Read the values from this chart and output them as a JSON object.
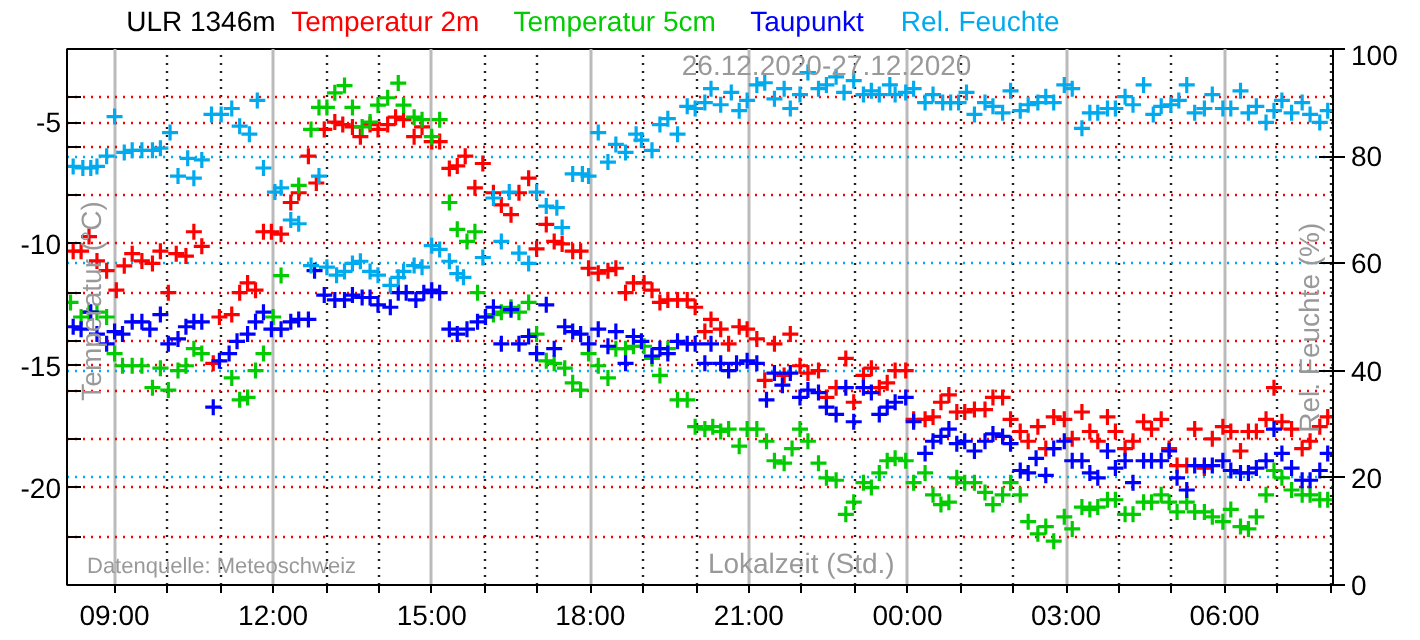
{
  "chart_data": {
    "type": "scatter",
    "title": "ULR 1346m",
    "xlabel": "Lokalzeit (Std.)",
    "ylabel": "Temperatur (°C)",
    "y2label": "Rel. Feuchte (%)",
    "annotations": [
      "26.12.2020-27.12.2020",
      "Datenquelle: Meteoschweiz"
    ],
    "xlim": [
      "2020-12-26T08:06",
      "2020-12-27T08:03"
    ],
    "ylim": [
      -24,
      -2
    ],
    "y2lim": [
      0,
      100
    ],
    "xticks": [
      {
        "value": "2020-12-26T09:00",
        "label": "09:00"
      },
      {
        "value": "2020-12-26T10:00",
        "label": null
      },
      {
        "value": "2020-12-26T11:00",
        "label": null
      },
      {
        "value": "2020-12-26T12:00",
        "label": "12:00"
      },
      {
        "value": "2020-12-26T13:00",
        "label": null
      },
      {
        "value": "2020-12-26T14:00",
        "label": null
      },
      {
        "value": "2020-12-26T15:00",
        "label": "15:00"
      },
      {
        "value": "2020-12-26T16:00",
        "label": null
      },
      {
        "value": "2020-12-26T17:00",
        "label": null
      },
      {
        "value": "2020-12-26T18:00",
        "label": "18:00"
      },
      {
        "value": "2020-12-26T19:00",
        "label": null
      },
      {
        "value": "2020-12-26T20:00",
        "label": null
      },
      {
        "value": "2020-12-26T21:00",
        "label": "21:00"
      },
      {
        "value": "2020-12-26T22:00",
        "label": null
      },
      {
        "value": "2020-12-26T23:00",
        "label": null
      },
      {
        "value": "2020-12-27T00:00",
        "label": "00:00"
      },
      {
        "value": "2020-12-27T01:00",
        "label": null
      },
      {
        "value": "2020-12-27T02:00",
        "label": null
      },
      {
        "value": "2020-12-27T03:00",
        "label": "03:00"
      },
      {
        "value": "2020-12-27T04:00",
        "label": null
      },
      {
        "value": "2020-12-27T05:00",
        "label": null
      },
      {
        "value": "2020-12-27T06:00",
        "label": "06:00"
      },
      {
        "value": "2020-12-27T07:00",
        "label": null
      },
      {
        "value": "2020-12-27T08:00",
        "label": null
      }
    ],
    "yticks": [
      {
        "value": -4,
        "label": null
      },
      -5,
      {
        "value": -6,
        "label": null
      },
      {
        "value": -8,
        "label": null
      },
      -10,
      {
        "value": -12,
        "label": null
      },
      {
        "value": -14,
        "label": null
      },
      -15,
      {
        "value": -16,
        "label": null
      },
      {
        "value": -18,
        "label": null
      },
      -20,
      {
        "value": -22,
        "label": null
      }
    ],
    "y2ticks": [
      0,
      20,
      40,
      60,
      80,
      100
    ],
    "grid": true,
    "marker": "cross",
    "series": [
      {
        "name": "Temperatur 2m",
        "color": "#ff0000",
        "x": [
          "2020-12-26T08:13",
          "2020-12-26T08:22",
          "2020-12-26T08:31",
          "2020-12-26T08:40",
          "2020-12-26T08:51",
          "2020-12-26T09:02",
          "2020-12-26T09:11",
          "2020-12-26T09:20",
          "2020-12-26T09:31",
          "2020-12-26T09:43",
          "2020-12-26T09:52",
          "2020-12-26T10:01",
          "2020-12-26T10:10",
          "2020-12-26T10:21",
          "2020-12-26T10:30",
          "2020-12-26T10:39",
          "2020-12-26T10:52",
          "2020-12-26T10:59",
          "2020-12-26T11:13",
          "2020-12-26T11:22",
          "2020-12-26T11:31",
          "2020-12-26T11:40",
          "2020-12-26T11:49",
          "2020-12-26T11:58",
          "2020-12-26T12:09",
          "2020-12-26T12:20",
          "2020-12-26T12:29",
          "2020-12-26T12:40",
          "2020-12-26T12:49",
          "2020-12-26T12:58",
          "2020-12-26T13:10",
          "2020-12-26T13:19",
          "2020-12-26T13:30",
          "2020-12-26T13:39",
          "2020-12-26T13:50",
          "2020-12-26T13:59",
          "2020-12-26T14:10",
          "2020-12-26T14:19",
          "2020-12-26T14:28",
          "2020-12-26T14:40",
          "2020-12-26T14:49",
          "2020-12-26T15:00",
          "2020-12-26T15:09",
          "2020-12-26T15:20",
          "2020-12-26T15:29",
          "2020-12-26T15:38",
          "2020-12-26T15:49",
          "2020-12-26T15:58",
          "2020-12-26T16:10",
          "2020-12-26T16:19",
          "2020-12-26T16:30",
          "2020-12-26T16:39",
          "2020-12-26T16:50",
          "2020-12-26T16:59",
          "2020-12-26T17:10",
          "2020-12-26T17:19",
          "2020-12-26T17:28",
          "2020-12-26T17:40",
          "2020-12-26T17:49",
          "2020-12-26T17:58",
          "2020-12-26T18:09",
          "2020-12-26T18:20",
          "2020-12-26T18:29",
          "2020-12-26T18:40",
          "2020-12-26T18:49",
          "2020-12-26T19:01",
          "2020-12-26T19:10",
          "2020-12-26T19:19",
          "2020-12-26T19:28",
          "2020-12-26T19:39",
          "2020-12-26T19:50",
          "2020-12-26T19:59",
          "2020-12-26T20:10",
          "2020-12-26T20:17",
          "2020-12-26T20:28",
          "2020-12-26T20:37",
          "2020-12-26T20:49",
          "2020-12-26T20:58",
          "2020-12-26T21:09",
          "2020-12-26T21:18",
          "2020-12-26T21:29",
          "2020-12-26T21:40",
          "2020-12-26T21:47",
          "2020-12-26T21:58",
          "2020-12-26T22:07",
          "2020-12-26T22:19",
          "2020-12-26T22:28",
          "2020-12-26T22:39",
          "2020-12-26T22:50",
          "2020-12-26T22:59",
          "2020-12-26T23:10",
          "2020-12-26T23:19",
          "2020-12-26T23:28",
          "2020-12-26T23:37",
          "2020-12-26T23:46",
          "2020-12-26T23:58",
          "2020-12-27T00:07",
          "2020-12-27T00:20",
          "2020-12-27T00:29",
          "2020-12-27T00:38",
          "2020-12-27T00:47",
          "2020-12-27T00:56",
          "2020-12-27T01:05",
          "2020-12-27T01:16",
          "2020-12-27T01:28",
          "2020-12-27T01:37",
          "2020-12-27T01:48",
          "2020-12-27T01:57",
          "2020-12-27T02:08",
          "2020-12-27T02:17",
          "2020-12-27T02:28",
          "2020-12-27T02:37",
          "2020-12-27T02:46",
          "2020-12-27T02:58",
          "2020-12-27T03:07",
          "2020-12-27T03:18",
          "2020-12-27T03:27",
          "2020-12-27T03:36",
          "2020-12-27T03:47",
          "2020-12-27T03:56",
          "2020-12-27T04:07",
          "2020-12-27T04:16",
          "2020-12-27T04:28",
          "2020-12-27T04:37",
          "2020-12-27T04:48",
          "2020-12-27T04:57",
          "2020-12-27T05:06",
          "2020-12-27T05:17",
          "2020-12-27T05:26",
          "2020-12-27T05:37",
          "2020-12-27T05:46",
          "2020-12-27T05:58",
          "2020-12-27T06:07",
          "2020-12-27T06:18",
          "2020-12-27T06:27",
          "2020-12-27T06:36",
          "2020-12-27T06:47",
          "2020-12-27T06:56",
          "2020-12-27T07:05",
          "2020-12-27T07:16",
          "2020-12-27T07:28",
          "2020-12-27T07:37",
          "2020-12-27T07:48",
          "2020-12-27T07:57"
        ],
        "values": [
          -10.3,
          -10.3,
          -9.7,
          -10.7,
          -11.1,
          -11.9,
          -10.9,
          -10.4,
          -10.7,
          -10.8,
          -10.3,
          -12.0,
          -10.4,
          -10.5,
          -9.5,
          -10.1,
          -14.9,
          -13.0,
          -12.9,
          -12.0,
          -11.6,
          -11.9,
          -9.5,
          -9.5,
          -9.6,
          -8.3,
          -7.9,
          -6.4,
          -7.5,
          -5.3,
          -5.0,
          -5.1,
          -5.2,
          -5.6,
          -5.1,
          -5.3,
          -5.1,
          -4.8,
          -4.9,
          -5.6,
          -5.2,
          -5.8,
          -5.8,
          -6.9,
          -6.8,
          -6.4,
          -7.7,
          -6.7,
          -7.9,
          -8.4,
          -8.8,
          -7.9,
          -7.3,
          -10.2,
          -9.2,
          -9.9,
          -10.0,
          -10.3,
          -10.3,
          -11.0,
          -11.2,
          -11.1,
          -11.0,
          -12.0,
          -11.6,
          -11.6,
          -11.9,
          -12.4,
          -12.3,
          -12.3,
          -12.3,
          -12.6,
          -13.6,
          -13.1,
          -13.5,
          -14.1,
          -13.4,
          -13.5,
          -13.9,
          -15.6,
          -14.1,
          -15.4,
          -13.7,
          -15.0,
          -15.3,
          -15.2,
          -16.3,
          -15.9,
          -14.7,
          -16.5,
          -15.4,
          -15.1,
          -15.9,
          -15.7,
          -15.2,
          -15.2,
          -17.2,
          -17.2,
          -17.1,
          -16.5,
          -16.2,
          -16.9,
          -16.9,
          -16.8,
          -16.8,
          -16.3,
          -16.3,
          -17.2,
          -17.7,
          -18.1,
          -17.5,
          -18.4,
          -17.1,
          -17.2,
          -18.0,
          -16.9,
          -17.7,
          -18.1,
          -17.1,
          -17.7,
          -18.4,
          -18.1,
          -17.3,
          -17.6,
          -17.2,
          -18.4,
          -19.1,
          -19.1,
          -17.6,
          -19.2,
          -18.0,
          -17.5,
          -17.7,
          -18.5,
          -17.7,
          -17.7,
          -17.2,
          -15.9,
          -17.3,
          -17.6,
          -18.4,
          -18.1,
          -17.5,
          -17.1
        ]
      },
      {
        "name": "Temperatur 5cm",
        "color": "#00cc00",
        "x": [
          "2020-12-26T08:10",
          "2020-12-26T08:22",
          "2020-12-26T08:31",
          "2020-12-26T08:40",
          "2020-12-26T08:51",
          "2020-12-26T09:00",
          "2020-12-26T09:09",
          "2020-12-26T09:20",
          "2020-12-26T09:31",
          "2020-12-26T09:43",
          "2020-12-26T09:52",
          "2020-12-26T10:01",
          "2020-12-26T10:12",
          "2020-12-26T10:21",
          "2020-12-26T10:30",
          "2020-12-26T10:39",
          "2020-12-26T10:59",
          "2020-12-26T11:13",
          "2020-12-26T11:22",
          "2020-12-26T11:31",
          "2020-12-26T11:40",
          "2020-12-26T11:49",
          "2020-12-26T12:00",
          "2020-12-26T12:09",
          "2020-12-26T12:29",
          "2020-12-26T12:43",
          "2020-12-26T12:52",
          "2020-12-26T13:01",
          "2020-12-26T13:10",
          "2020-12-26T13:21",
          "2020-12-26T13:30",
          "2020-12-26T13:41",
          "2020-12-26T13:50",
          "2020-12-26T13:59",
          "2020-12-26T14:10",
          "2020-12-26T14:22",
          "2020-12-26T14:28",
          "2020-12-26T14:40",
          "2020-12-26T14:49",
          "2020-12-26T15:00",
          "2020-12-26T15:09",
          "2020-12-26T15:20",
          "2020-12-26T15:29",
          "2020-12-26T15:40",
          "2020-12-26T15:49",
          "2020-12-26T15:52",
          "2020-12-26T16:01",
          "2020-12-26T16:10",
          "2020-12-26T16:19",
          "2020-12-26T16:30",
          "2020-12-26T16:39",
          "2020-12-26T16:50",
          "2020-12-26T16:59",
          "2020-12-26T17:10",
          "2020-12-26T17:19",
          "2020-12-26T17:31",
          "2020-12-26T17:40",
          "2020-12-26T17:49",
          "2020-12-26T17:58",
          "2020-12-26T18:09",
          "2020-12-26T18:20",
          "2020-12-26T18:29",
          "2020-12-26T18:40",
          "2020-12-26T18:49",
          "2020-12-26T19:01",
          "2020-12-26T19:10",
          "2020-12-26T19:19",
          "2020-12-26T19:28",
          "2020-12-26T19:39",
          "2020-12-26T19:50",
          "2020-12-26T19:59",
          "2020-12-26T20:10",
          "2020-12-26T20:19",
          "2020-12-26T20:28",
          "2020-12-26T20:37",
          "2020-12-26T20:49",
          "2020-12-26T20:58",
          "2020-12-26T21:09",
          "2020-12-26T21:20",
          "2020-12-26T21:29",
          "2020-12-26T21:40",
          "2020-12-26T21:49",
          "2020-12-26T21:58",
          "2020-12-26T22:07",
          "2020-12-26T22:19",
          "2020-12-26T22:28",
          "2020-12-26T22:39",
          "2020-12-26T22:50",
          "2020-12-26T22:59",
          "2020-12-26T23:10",
          "2020-12-26T23:19",
          "2020-12-26T23:28",
          "2020-12-26T23:37",
          "2020-12-26T23:46",
          "2020-12-26T23:58",
          "2020-12-27T00:07",
          "2020-12-27T00:20",
          "2020-12-27T00:29",
          "2020-12-27T00:38",
          "2020-12-27T00:47",
          "2020-12-27T00:56",
          "2020-12-27T01:05",
          "2020-12-27T01:16",
          "2020-12-27T01:28",
          "2020-12-27T01:37",
          "2020-12-27T01:48",
          "2020-12-27T01:57",
          "2020-12-27T02:08",
          "2020-12-27T02:17",
          "2020-12-27T02:28",
          "2020-12-27T02:37",
          "2020-12-27T02:46",
          "2020-12-27T02:58",
          "2020-12-27T03:07",
          "2020-12-27T03:18",
          "2020-12-27T03:27",
          "2020-12-27T03:36",
          "2020-12-27T03:47",
          "2020-12-27T03:56",
          "2020-12-27T04:07",
          "2020-12-27T04:16",
          "2020-12-27T04:28",
          "2020-12-27T04:37",
          "2020-12-27T04:48",
          "2020-12-27T04:57",
          "2020-12-27T05:06",
          "2020-12-27T05:17",
          "2020-12-27T05:26",
          "2020-12-27T05:37",
          "2020-12-27T05:46",
          "2020-12-27T05:58",
          "2020-12-27T06:07",
          "2020-12-27T06:18",
          "2020-12-27T06:27",
          "2020-12-27T06:36",
          "2020-12-27T06:47",
          "2020-12-27T06:56",
          "2020-12-27T07:05",
          "2020-12-27T07:16",
          "2020-12-27T07:28",
          "2020-12-27T07:37",
          "2020-12-27T07:48",
          "2020-12-27T07:57"
        ],
        "values": [
          -12.4,
          -13.0,
          -12.8,
          -12.8,
          -13.0,
          -14.5,
          -15.0,
          -15.0,
          -15.0,
          -15.9,
          -15.1,
          -16.0,
          -15.2,
          -15.0,
          -14.3,
          -14.5,
          null,
          -15.5,
          -16.4,
          -16.3,
          -15.2,
          -14.5,
          -13.0,
          -11.3,
          -7.6,
          -5.3,
          -4.4,
          -4.4,
          -3.8,
          -3.5,
          -4.4,
          -5.2,
          -5.0,
          -4.3,
          -4.0,
          -3.4,
          -4.3,
          -4.8,
          -4.9,
          -5.6,
          -4.9,
          -8.3,
          -9.4,
          -9.9,
          -9.5,
          -12.0,
          -13.0,
          -12.9,
          -12.8,
          -12.6,
          -12.8,
          -12.4,
          -13.7,
          -14.8,
          -14.9,
          -15.1,
          -15.7,
          -16.0,
          -14.5,
          -15.0,
          -15.5,
          -14.3,
          -14.3,
          -14.2,
          -14.2,
          -14.7,
          -15.4,
          -14.3,
          -16.4,
          -16.4,
          -17.5,
          -17.6,
          -17.5,
          -17.7,
          -17.6,
          -18.3,
          -17.6,
          -17.6,
          -18.1,
          -18.9,
          -19.0,
          -18.4,
          -17.6,
          -18.1,
          -19.0,
          -19.6,
          -19.7,
          -21.1,
          -20.6,
          -19.8,
          -20.0,
          -19.4,
          -18.9,
          -18.8,
          -18.9,
          -19.8,
          -19.4,
          -20.3,
          -20.7,
          -20.6,
          -19.6,
          -19.8,
          -19.8,
          -20.2,
          -20.7,
          -20.3,
          -19.8,
          -20.3,
          -21.4,
          -21.9,
          -21.6,
          -22.2,
          -21.2,
          -21.7,
          -20.8,
          -20.9,
          -20.8,
          -20.5,
          -20.5,
          -21.1,
          -21.1,
          -20.6,
          -20.6,
          -20.3,
          -20.6,
          -21.0,
          -20.6,
          -21.0,
          -21.0,
          -21.2,
          -21.4,
          -20.9,
          -21.6,
          -21.7,
          -21.2,
          -20.3,
          -19.3,
          -19.6,
          -20.1,
          -20.3,
          -20.3,
          -20.5,
          -20.5
        ]
      },
      {
        "name": "Taupunkt",
        "color": "#0000ff",
        "x": [
          "2020-12-26T08:13",
          "2020-12-26T08:22",
          "2020-12-26T08:33",
          "2020-12-26T08:40",
          "2020-12-26T08:51",
          "2020-12-26T09:00",
          "2020-12-26T09:09",
          "2020-12-26T09:20",
          "2020-12-26T09:31",
          "2020-12-26T09:40",
          "2020-12-26T09:52",
          "2020-12-26T10:01",
          "2020-12-26T10:12",
          "2020-12-26T10:21",
          "2020-12-26T10:30",
          "2020-12-26T10:39",
          "2020-12-26T10:52",
          "2020-12-26T10:59",
          "2020-12-26T11:10",
          "2020-12-26T11:19",
          "2020-12-26T11:31",
          "2020-12-26T11:40",
          "2020-12-26T11:49",
          "2020-12-26T11:58",
          "2020-12-26T12:09",
          "2020-12-26T12:20",
          "2020-12-26T12:29",
          "2020-12-26T12:40",
          "2020-12-26T12:47",
          "2020-12-26T12:58",
          "2020-12-26T13:10",
          "2020-12-26T13:21",
          "2020-12-26T13:30",
          "2020-12-26T13:41",
          "2020-12-26T13:50",
          "2020-12-26T13:59",
          "2020-12-26T14:13",
          "2020-12-26T14:22",
          "2020-12-26T14:31",
          "2020-12-26T14:42",
          "2020-12-26T14:51",
          "2020-12-26T15:00",
          "2020-12-26T15:09",
          "2020-12-26T15:20",
          "2020-12-26T15:29",
          "2020-12-26T15:40",
          "2020-12-26T15:52",
          "2020-12-26T16:01",
          "2020-12-26T16:10",
          "2020-12-26T16:19",
          "2020-12-26T16:30",
          "2020-12-26T16:39",
          "2020-12-26T16:50",
          "2020-12-26T16:59",
          "2020-12-26T17:10",
          "2020-12-26T17:19",
          "2020-12-26T17:31",
          "2020-12-26T17:40",
          "2020-12-26T17:49",
          "2020-12-26T17:58",
          "2020-12-26T18:09",
          "2020-12-26T18:20",
          "2020-12-26T18:29",
          "2020-12-26T18:40",
          "2020-12-26T18:49",
          "2020-12-26T18:58",
          "2020-12-26T19:10",
          "2020-12-26T19:19",
          "2020-12-26T19:28",
          "2020-12-26T19:39",
          "2020-12-26T19:50",
          "2020-12-26T19:59",
          "2020-12-26T20:10",
          "2020-12-26T20:17",
          "2020-12-26T20:28",
          "2020-12-26T20:37",
          "2020-12-26T20:46",
          "2020-12-26T20:58",
          "2020-12-26T21:09",
          "2020-12-26T21:20",
          "2020-12-26T21:29",
          "2020-12-26T21:38",
          "2020-12-26T21:47",
          "2020-12-26T21:58",
          "2020-12-26T22:07",
          "2020-12-26T22:19",
          "2020-12-26T22:28",
          "2020-12-26T22:39",
          "2020-12-26T22:50",
          "2020-12-26T22:59",
          "2020-12-26T23:10",
          "2020-12-26T23:19",
          "2020-12-26T23:28",
          "2020-12-26T23:37",
          "2020-12-26T23:46",
          "2020-12-26T23:58",
          "2020-12-27T00:07",
          "2020-12-27T00:20",
          "2020-12-27T00:29",
          "2020-12-27T00:38",
          "2020-12-27T00:47",
          "2020-12-27T00:56",
          "2020-12-27T01:05",
          "2020-12-27T01:16",
          "2020-12-27T01:28",
          "2020-12-27T01:37",
          "2020-12-27T01:48",
          "2020-12-27T01:57",
          "2020-12-27T02:08",
          "2020-12-27T02:17",
          "2020-12-27T02:26",
          "2020-12-27T02:37",
          "2020-12-27T02:46",
          "2020-12-27T02:58",
          "2020-12-27T03:07",
          "2020-12-27T03:18",
          "2020-12-27T03:27",
          "2020-12-27T03:36",
          "2020-12-27T03:47",
          "2020-12-27T03:56",
          "2020-12-27T04:07",
          "2020-12-27T04:16",
          "2020-12-27T04:28",
          "2020-12-27T04:37",
          "2020-12-27T04:48",
          "2020-12-27T04:57",
          "2020-12-27T05:06",
          "2020-12-27T05:17",
          "2020-12-27T05:26",
          "2020-12-27T05:37",
          "2020-12-27T05:46",
          "2020-12-27T05:58",
          "2020-12-27T06:07",
          "2020-12-27T06:18",
          "2020-12-27T06:27",
          "2020-12-27T06:36",
          "2020-12-27T06:47",
          "2020-12-27T06:56",
          "2020-12-27T07:05",
          "2020-12-27T07:16",
          "2020-12-27T07:28",
          "2020-12-27T07:37",
          "2020-12-27T07:48",
          "2020-12-27T07:57"
        ],
        "values": [
          -13.4,
          -13.5,
          -12.8,
          -13.7,
          -14.1,
          -13.6,
          -13.7,
          -13.2,
          -13.2,
          -13.5,
          -12.9,
          -14.1,
          -13.9,
          -13.4,
          -13.2,
          -13.2,
          -16.7,
          -14.8,
          -14.5,
          -14.0,
          -13.7,
          -13.2,
          -12.8,
          -13.5,
          -13.5,
          -13.2,
          -13.1,
          -13.1,
          -11.1,
          -12.1,
          -12.3,
          -12.3,
          -12.1,
          -12.2,
          -12.2,
          -12.5,
          -12.6,
          -12.0,
          -12.0,
          -12.3,
          -12.0,
          -11.9,
          -12.0,
          -13.5,
          -13.7,
          -13.5,
          -13.2,
          -13.0,
          -12.6,
          -14.1,
          -12.7,
          -14.1,
          -13.8,
          -14.5,
          -12.5,
          -14.3,
          -13.4,
          -13.6,
          -13.7,
          -14.1,
          -13.5,
          -14.2,
          -13.6,
          -14.9,
          -13.8,
          -14.0,
          -14.6,
          -14.3,
          -14.5,
          -14.0,
          -14.1,
          -14.1,
          -14.9,
          -14.1,
          -14.9,
          -15.2,
          -14.9,
          -14.8,
          -14.9,
          -16.4,
          -15.3,
          -15.8,
          -15.3,
          -16.3,
          -16.0,
          -16.1,
          -16.7,
          -17.0,
          -15.9,
          -17.3,
          -15.9,
          -16.1,
          -17.0,
          -16.7,
          -16.5,
          -16.3,
          -17.3,
          -18.6,
          -18.1,
          -17.9,
          -17.6,
          -18.2,
          -18.1,
          -18.5,
          -18.1,
          -17.8,
          -17.9,
          -18.2,
          -19.3,
          -19.4,
          -18.8,
          -19.5,
          -18.4,
          -18.1,
          -18.9,
          -18.9,
          -19.4,
          -19.6,
          -18.5,
          -19.2,
          -18.9,
          -19.8,
          -18.9,
          -18.9,
          -18.9,
          -18.5,
          -19.6,
          -20.1,
          -19.1,
          -19.1,
          -19.1,
          -18.9,
          -19.3,
          -19.4,
          -19.4,
          -19.2,
          -18.9,
          -17.6,
          -18.6,
          -19.2,
          -19.7,
          -19.7,
          -19.3,
          -18.6
        ]
      },
      {
        "name": "Rel. Feuchte",
        "color": "#00aaee",
        "axis": "y2",
        "x": [
          "2020-12-26T08:13",
          "2020-12-26T08:24",
          "2020-12-26T08:33",
          "2020-12-26T08:40",
          "2020-12-26T08:51",
          "2020-12-26T09:00",
          "2020-12-26T09:11",
          "2020-12-26T09:20",
          "2020-12-26T09:31",
          "2020-12-26T09:43",
          "2020-12-26T09:52",
          "2020-12-26T10:03",
          "2020-12-26T10:12",
          "2020-12-26T10:23",
          "2020-12-26T10:30",
          "2020-12-26T10:39",
          "2020-12-26T10:50",
          "2020-12-26T11:01",
          "2020-12-26T11:13",
          "2020-12-26T11:22",
          "2020-12-26T11:33",
          "2020-12-26T11:42",
          "2020-12-26T11:49",
          "2020-12-26T12:02",
          "2020-12-26T12:09",
          "2020-12-26T12:20",
          "2020-12-26T12:29",
          "2020-12-26T12:43",
          "2020-12-26T12:52",
          "2020-12-26T13:01",
          "2020-12-26T13:12",
          "2020-12-26T13:21",
          "2020-12-26T13:30",
          "2020-12-26T13:39",
          "2020-12-26T13:50",
          "2020-12-26T13:59",
          "2020-12-26T14:13",
          "2020-12-26T14:22",
          "2020-12-26T14:28",
          "2020-12-26T14:40",
          "2020-12-26T14:49",
          "2020-12-26T15:00",
          "2020-12-26T15:09",
          "2020-12-26T15:20",
          "2020-12-26T15:29",
          "2020-12-26T15:36",
          "2020-12-26T15:58",
          "2020-12-26T16:10",
          "2020-12-26T16:19",
          "2020-12-26T16:28",
          "2020-12-26T16:39",
          "2020-12-26T16:50",
          "2020-12-26T16:59",
          "2020-12-26T17:10",
          "2020-12-26T17:22",
          "2020-12-26T17:28",
          "2020-12-26T17:40",
          "2020-12-26T17:51",
          "2020-12-26T17:58",
          "2020-12-26T18:09",
          "2020-12-26T18:20",
          "2020-12-26T18:29",
          "2020-12-26T18:40",
          "2020-12-26T18:52",
          "2020-12-26T18:58",
          "2020-12-26T19:10",
          "2020-12-26T19:19",
          "2020-12-26T19:28",
          "2020-12-26T19:39",
          "2020-12-26T19:50",
          "2020-12-26T19:59",
          "2020-12-26T20:10",
          "2020-12-26T20:17",
          "2020-12-26T20:28",
          "2020-12-26T20:40",
          "2020-12-26T20:49",
          "2020-12-26T20:58",
          "2020-12-26T21:09",
          "2020-12-26T21:18",
          "2020-12-26T21:29",
          "2020-12-26T21:40",
          "2020-12-26T21:47",
          "2020-12-26T21:58",
          "2020-12-26T22:07",
          "2020-12-26T22:19",
          "2020-12-26T22:28",
          "2020-12-26T22:39",
          "2020-12-26T22:48",
          "2020-12-26T22:59",
          "2020-12-26T23:10",
          "2020-12-26T23:19",
          "2020-12-26T23:28",
          "2020-12-26T23:40",
          "2020-12-26T23:46",
          "2020-12-26T23:58",
          "2020-12-27T00:07",
          "2020-12-27T00:20",
          "2020-12-27T00:29",
          "2020-12-27T00:40",
          "2020-12-27T00:49",
          "2020-12-27T00:58",
          "2020-12-27T01:07",
          "2020-12-27T01:16",
          "2020-12-27T01:28",
          "2020-12-27T01:37",
          "2020-12-27T01:48",
          "2020-12-27T01:57",
          "2020-12-27T02:08",
          "2020-12-27T02:17",
          "2020-12-27T02:28",
          "2020-12-27T02:37",
          "2020-12-27T02:46",
          "2020-12-27T02:58",
          "2020-12-27T03:07",
          "2020-12-27T03:18",
          "2020-12-27T03:27",
          "2020-12-27T03:36",
          "2020-12-27T03:47",
          "2020-12-27T03:56",
          "2020-12-27T04:07",
          "2020-12-27T04:16",
          "2020-12-27T04:28",
          "2020-12-27T04:39",
          "2020-12-27T04:48",
          "2020-12-27T04:59",
          "2020-12-27T05:08",
          "2020-12-27T05:17",
          "2020-12-27T05:26",
          "2020-12-27T05:37",
          "2020-12-27T05:46",
          "2020-12-27T05:58",
          "2020-12-27T06:07",
          "2020-12-27T06:18",
          "2020-12-27T06:27",
          "2020-12-27T06:36",
          "2020-12-27T06:47",
          "2020-12-27T06:56",
          "2020-12-27T07:05",
          "2020-12-27T07:16",
          "2020-12-27T07:28",
          "2020-12-27T07:37",
          "2020-12-27T07:48",
          "2020-12-27T07:57"
        ],
        "values": [
          78.1,
          77.8,
          77.8,
          78.1,
          80,
          87.4,
          80.7,
          81.1,
          81.1,
          81.1,
          81.5,
          84.4,
          76.3,
          79.6,
          75.9,
          79.3,
          87.8,
          87.8,
          88.9,
          85.6,
          84.1,
          90.4,
          77.8,
          73.3,
          74.1,
          68.1,
          67.4,
          59.6,
          76.3,
          59.3,
          57.8,
          58.5,
          60,
          60.4,
          58.5,
          57.8,
          55.9,
          57.4,
          58.5,
          59.6,
          59.3,
          63.3,
          62.6,
          60.4,
          58.1,
          57.4,
          61.1,
          72.2,
          64.1,
          73.3,
          61.9,
          60,
          73.3,
          70.7,
          70.4,
          66.7,
          76.7,
          76.7,
          76.3,
          84.4,
          78.9,
          82.2,
          80.7,
          84.1,
          83,
          81.1,
          85.9,
          87,
          84.1,
          89.3,
          88.9,
          90,
          92.6,
          89.6,
          91.9,
          88.5,
          90.4,
          93.3,
          93.7,
          90.7,
          92.6,
          88.9,
          91.5,
          95.6,
          92.6,
          93.3,
          94.8,
          91.9,
          94.1,
          91.5,
          92.2,
          91.5,
          93.3,
          91.5,
          91.9,
          92.6,
          90,
          91.5,
          90,
          90,
          90,
          91.9,
          87.8,
          90,
          89.3,
          88.1,
          92.2,
          88.5,
          89.6,
          90,
          91.1,
          90,
          93.3,
          92.6,
          85.2,
          88.1,
          88.1,
          88.9,
          88.9,
          91.1,
          89.6,
          93.3,
          87.8,
          89.3,
          89.6,
          90.4,
          93.3,
          88.1,
          88.9,
          91.5,
          88.9,
          88.9,
          92.2,
          88.1,
          89.3,
          86.3,
          88.5,
          90.4,
          88.1,
          90,
          87.8,
          86.3,
          88.5
        ]
      }
    ]
  }
}
